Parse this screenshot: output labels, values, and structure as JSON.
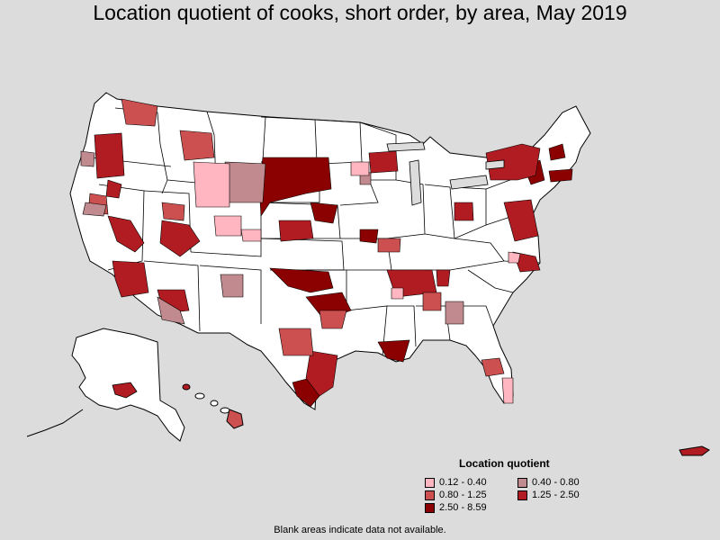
{
  "title": "Location quotient of cooks, short order, by area, May 2019",
  "legend": {
    "title": "Location quotient",
    "items": [
      {
        "label": "0.12 - 0.40",
        "color": "#ffb6c1"
      },
      {
        "label": "0.40 - 0.80",
        "color": "#c08a8e"
      },
      {
        "label": "0.80 - 1.25",
        "color": "#cd5050"
      },
      {
        "label": "1.25 - 2.50",
        "color": "#b01c22"
      },
      {
        "label": "2.50 - 8.59",
        "color": "#8b0000"
      }
    ]
  },
  "footnote": "Blank areas indicate data not available.",
  "colors": {
    "background": "#dcdcdc",
    "land": "#ffffff",
    "border": "#000000"
  }
}
